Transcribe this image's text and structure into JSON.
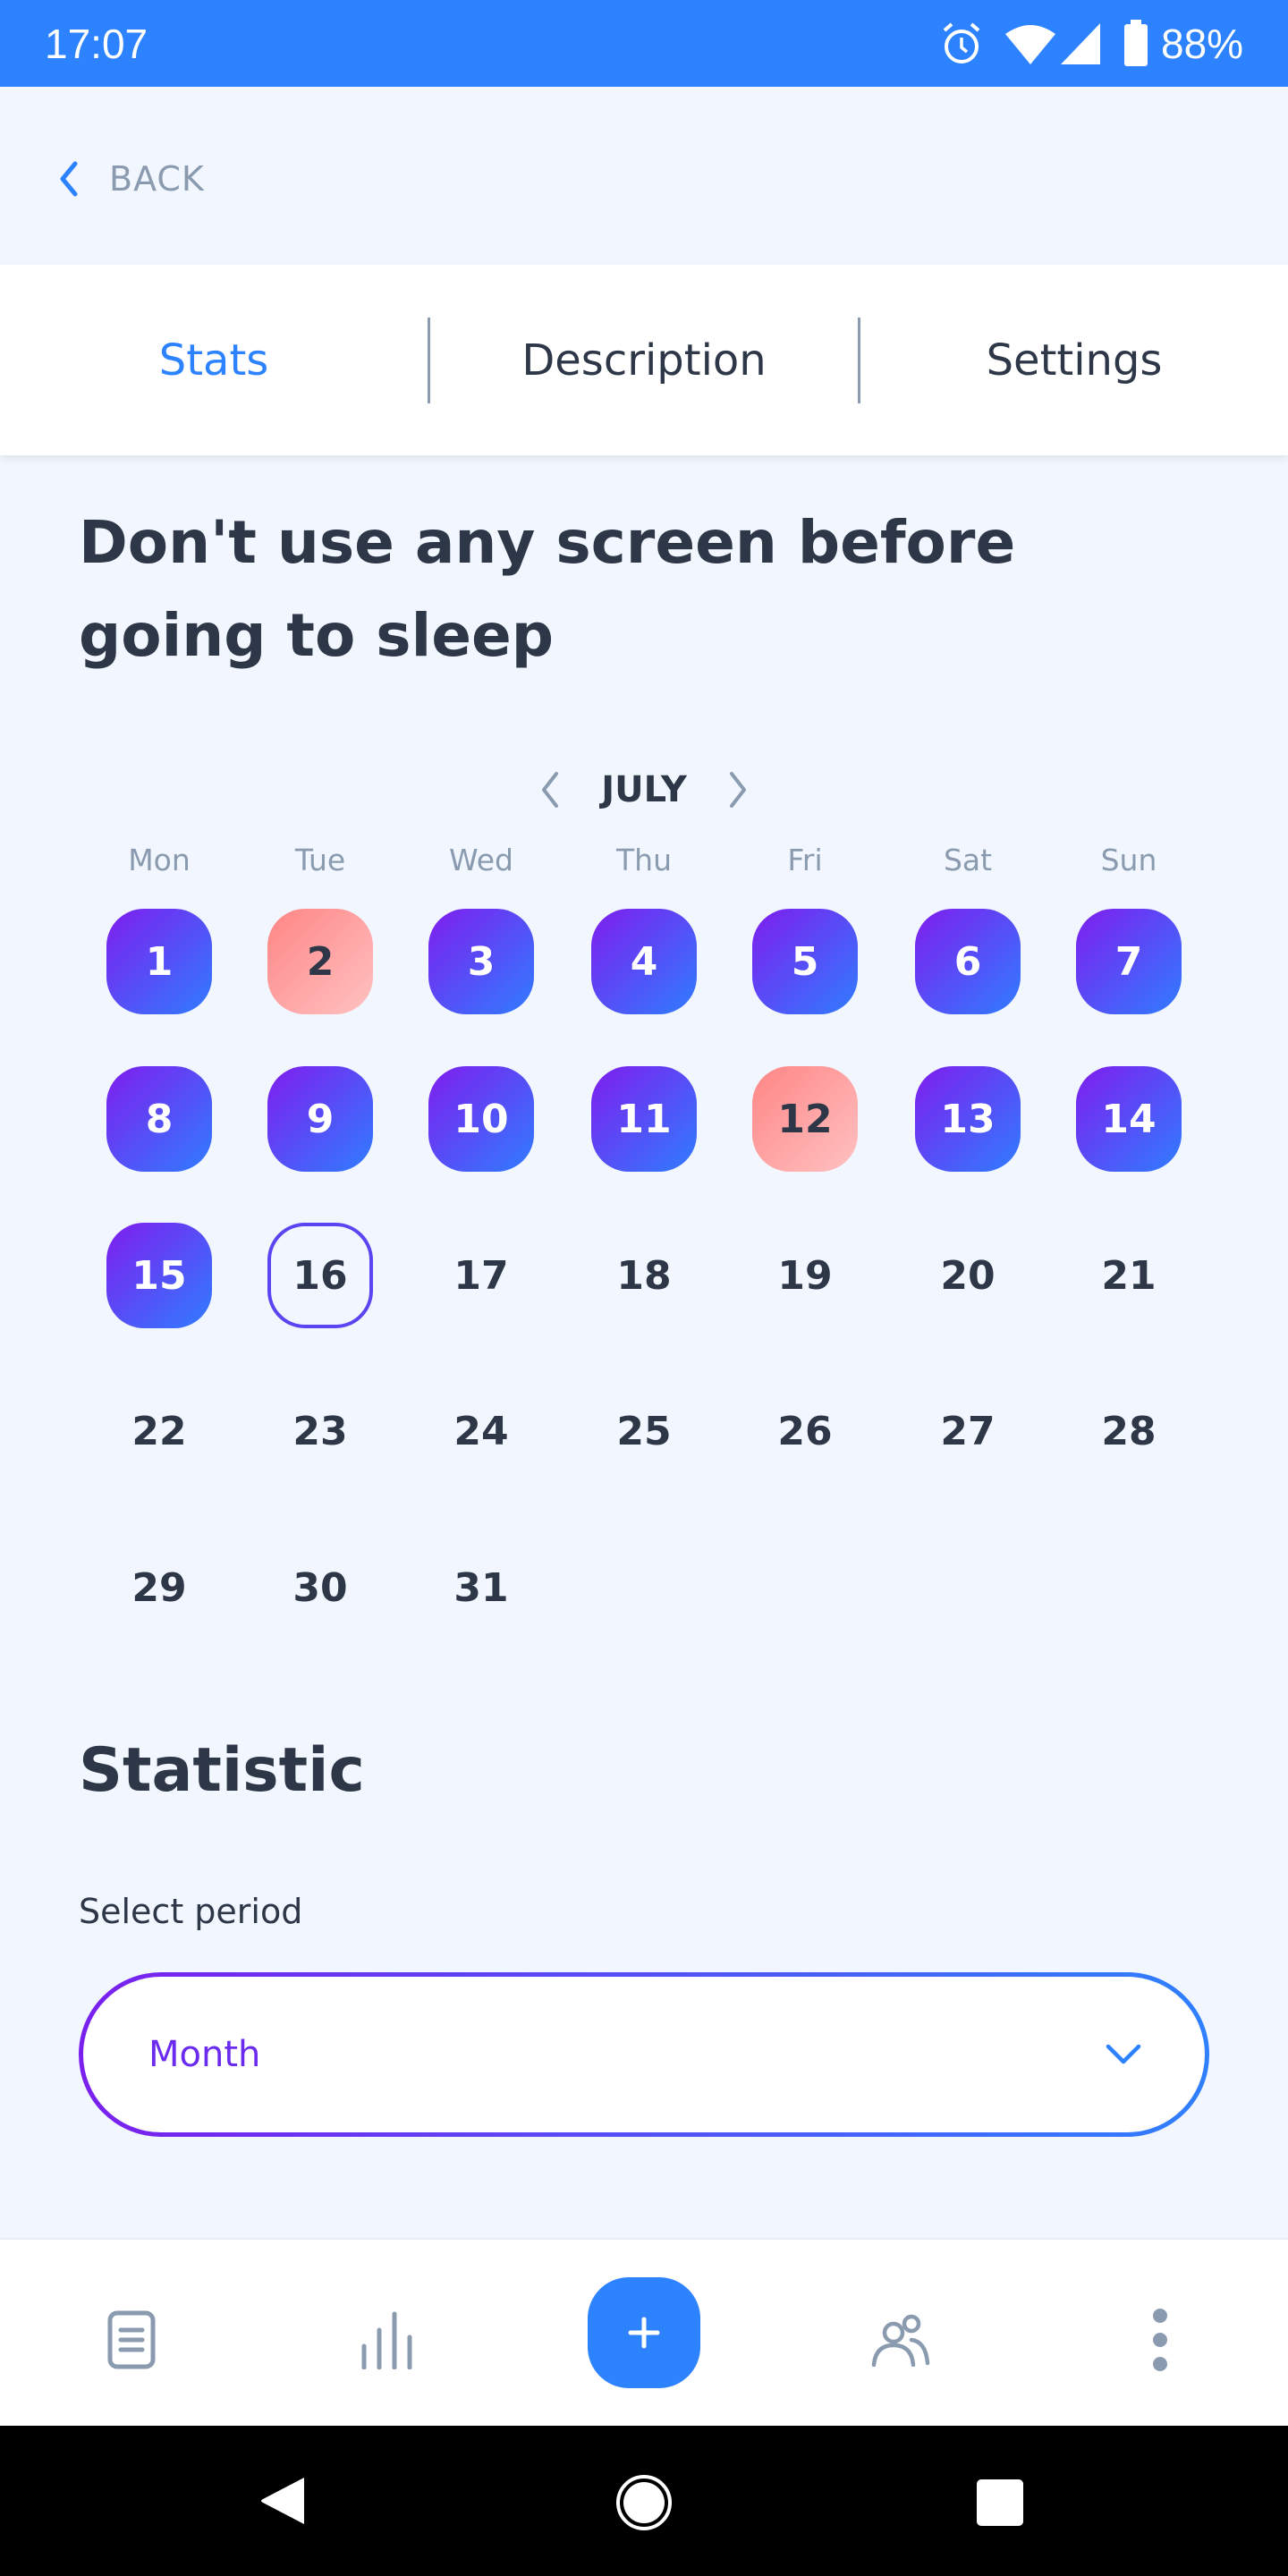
{
  "status_bar": {
    "time": "17:07",
    "battery": "88%",
    "icons": [
      "alarm-icon",
      "wifi-icon",
      "signal-icon",
      "battery-icon"
    ]
  },
  "back": {
    "label": "BACK"
  },
  "tabs": [
    {
      "label": "Stats",
      "active": true
    },
    {
      "label": "Description",
      "active": false
    },
    {
      "label": "Settings",
      "active": false
    }
  ],
  "habit_title": "Don't use any screen before going to sleep",
  "calendar": {
    "month": "JULY",
    "weekdays": [
      "Mon",
      "Tue",
      "Wed",
      "Thu",
      "Fri",
      "Sat",
      "Sun"
    ],
    "days": [
      {
        "d": "1",
        "s": "done"
      },
      {
        "d": "2",
        "s": "miss"
      },
      {
        "d": "3",
        "s": "done"
      },
      {
        "d": "4",
        "s": "done"
      },
      {
        "d": "5",
        "s": "done"
      },
      {
        "d": "6",
        "s": "done"
      },
      {
        "d": "7",
        "s": "done"
      },
      {
        "d": "8",
        "s": "done"
      },
      {
        "d": "9",
        "s": "done"
      },
      {
        "d": "10",
        "s": "done"
      },
      {
        "d": "11",
        "s": "done"
      },
      {
        "d": "12",
        "s": "miss"
      },
      {
        "d": "13",
        "s": "done"
      },
      {
        "d": "14",
        "s": "done"
      },
      {
        "d": "15",
        "s": "done"
      },
      {
        "d": "16",
        "s": "today"
      },
      {
        "d": "17",
        "s": ""
      },
      {
        "d": "18",
        "s": ""
      },
      {
        "d": "19",
        "s": ""
      },
      {
        "d": "20",
        "s": ""
      },
      {
        "d": "21",
        "s": ""
      },
      {
        "d": "22",
        "s": ""
      },
      {
        "d": "23",
        "s": ""
      },
      {
        "d": "24",
        "s": ""
      },
      {
        "d": "25",
        "s": ""
      },
      {
        "d": "26",
        "s": ""
      },
      {
        "d": "27",
        "s": ""
      },
      {
        "d": "28",
        "s": ""
      },
      {
        "d": "29",
        "s": ""
      },
      {
        "d": "30",
        "s": ""
      },
      {
        "d": "31",
        "s": ""
      }
    ]
  },
  "statistic": {
    "heading": "Statistic",
    "select_label": "Select period",
    "selected": "Month"
  },
  "colors": {
    "accent": "#2D83FF",
    "done_gradient": [
      "#7F1DEE",
      "#2F7DFF"
    ],
    "miss_gradient": [
      "#FF8585",
      "#FFC2C2"
    ],
    "text": "#2D3748"
  },
  "bottom_nav": [
    "list-icon",
    "stats-icon",
    "add-icon",
    "friends-icon",
    "more-icon"
  ]
}
